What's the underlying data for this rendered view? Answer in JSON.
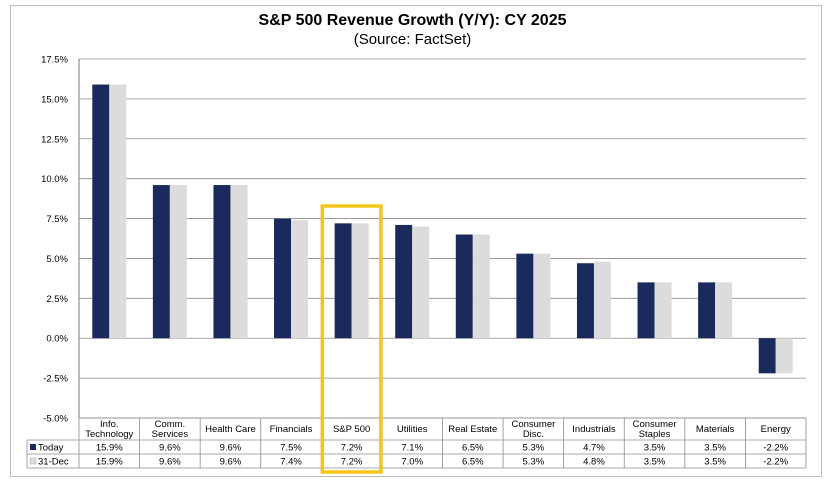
{
  "chart_data": {
    "type": "bar",
    "title": "S&P 500 Revenue Growth (Y/Y): CY 2025",
    "subtitle": "(Source: FactSet)",
    "ylim": [
      -5.0,
      17.5
    ],
    "yticks": [
      "17.5%",
      "15.0%",
      "12.5%",
      "10.0%",
      "7.5%",
      "5.0%",
      "2.5%",
      "0.0%",
      "-2.5%",
      "-5.0%"
    ],
    "ytick_values": [
      17.5,
      15.0,
      12.5,
      10.0,
      7.5,
      5.0,
      2.5,
      0.0,
      -2.5,
      -5.0
    ],
    "grid": true,
    "categories": [
      [
        "Info.",
        "Technology"
      ],
      [
        "Comm.",
        "Services"
      ],
      [
        "Health Care"
      ],
      [
        "Financials"
      ],
      [
        "S&P 500"
      ],
      [
        "Utilities"
      ],
      [
        "Real Estate"
      ],
      [
        "Consumer",
        "Disc."
      ],
      [
        "Industrials"
      ],
      [
        "Consumer",
        "Staples"
      ],
      [
        "Materials"
      ],
      [
        "Energy"
      ]
    ],
    "series": [
      {
        "name": "Today",
        "color": "#1b2a5c",
        "values": [
          15.9,
          9.6,
          9.6,
          7.5,
          7.2,
          7.1,
          6.5,
          5.3,
          4.7,
          3.5,
          3.5,
          -2.2
        ],
        "labels": [
          "15.9%",
          "9.6%",
          "9.6%",
          "7.5%",
          "7.2%",
          "7.1%",
          "6.5%",
          "5.3%",
          "4.7%",
          "3.5%",
          "3.5%",
          "-2.2%"
        ]
      },
      {
        "name": "31-Dec",
        "color": "#dcdcdc",
        "values": [
          15.9,
          9.6,
          9.6,
          7.4,
          7.2,
          7.0,
          6.5,
          5.3,
          4.8,
          3.5,
          3.5,
          -2.2
        ],
        "labels": [
          "15.9%",
          "9.6%",
          "9.6%",
          "7.4%",
          "7.2%",
          "7.0%",
          "6.5%",
          "5.3%",
          "4.8%",
          "3.5%",
          "3.5%",
          "-2.2%"
        ]
      }
    ],
    "highlight": {
      "category_index": 4,
      "color": "#f5c518"
    },
    "legend": "data-table"
  }
}
